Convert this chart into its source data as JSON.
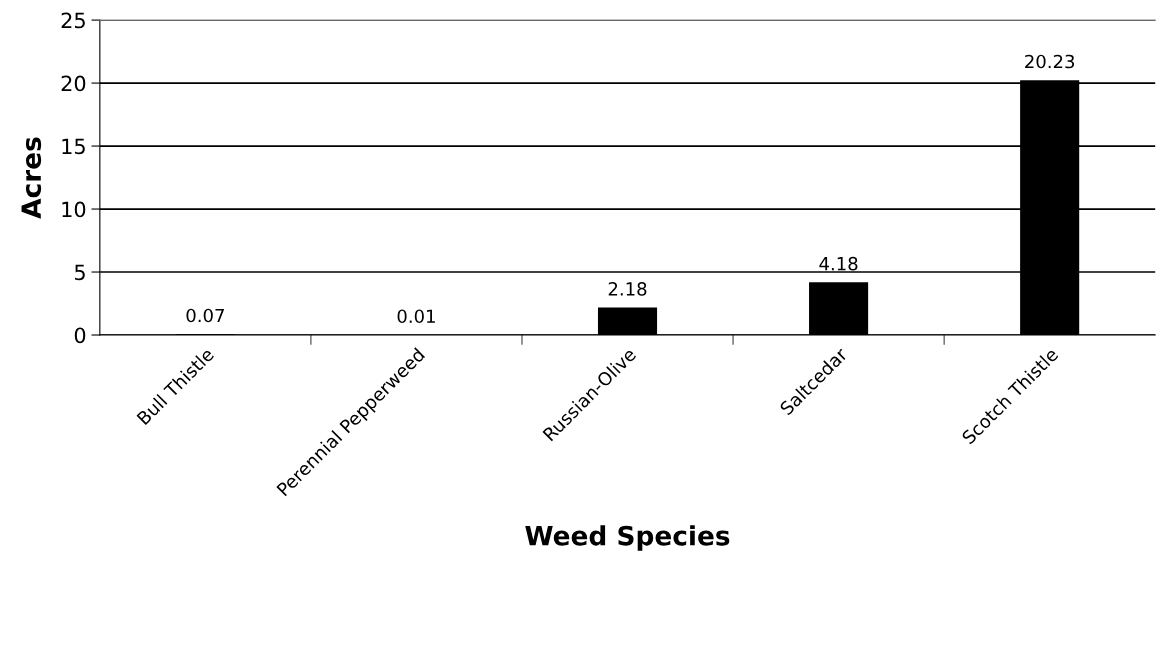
{
  "chart_data": {
    "type": "bar",
    "xlabel": "Weed Species",
    "ylabel": "Acres",
    "categories": [
      "Bull Thistle",
      "Perennial Pepperweed",
      "Russian-Olive",
      "Saltcedar",
      "Scotch Thistle"
    ],
    "values": [
      0.07,
      0.01,
      2.18,
      4.18,
      20.23
    ],
    "color": "#000000",
    "ylim": [
      0,
      25
    ],
    "yticks": [
      0,
      5,
      10,
      15,
      20,
      25
    ],
    "grid": "y",
    "data_labels": true
  }
}
